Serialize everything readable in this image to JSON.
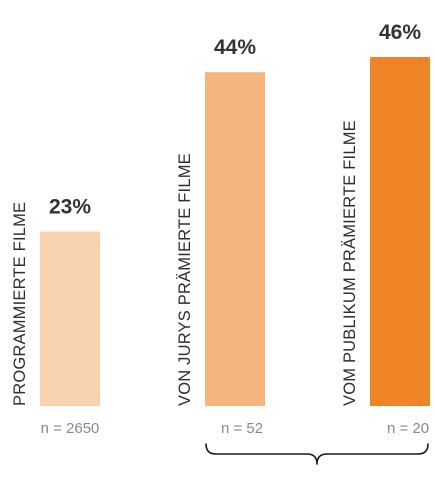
{
  "chart_data": {
    "type": "bar",
    "title": "",
    "xlabel": "",
    "ylabel": "",
    "ylim": [
      0,
      46
    ],
    "grid": false,
    "legend": "none",
    "categories": [
      "PROGRAMMIERTE FILME",
      "VON JURYS PRÄMIERTE FILME",
      "VOM PUBLIKUM PRÄMIERTE FILME"
    ],
    "values": [
      23,
      44,
      46
    ],
    "value_labels": [
      "23%",
      "44%",
      "46%"
    ],
    "sample_sizes": [
      "n = 2650",
      "n = 52",
      "n = 20"
    ],
    "colors": [
      "#f9d3b0",
      "#f5b57c",
      "#ef8427"
    ],
    "text_color": "#333333",
    "n_color": "#8a8a8a",
    "brace_color": "#1a1a1a"
  }
}
